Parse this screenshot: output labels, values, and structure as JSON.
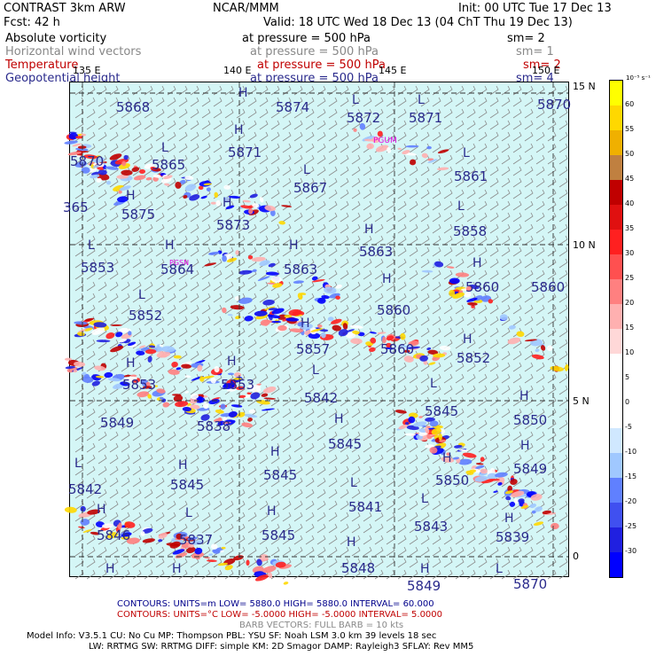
{
  "header": {
    "model": "CONTRAST  3km ARW",
    "org": "NCAR/MMM",
    "init": "Init: 00 UTC Tue 17 Dec 13",
    "fcst": "Fcst:    42 h",
    "valid": "Valid: 18 UTC Wed 18 Dec 13 (04 ChT Thu 19 Dec 13)"
  },
  "fields": [
    {
      "name": "Absolute vorticity",
      "pressure": "at pressure =  500 hPa",
      "sm": "sm= 2",
      "color": "#000000"
    },
    {
      "name": "Horizontal wind vectors",
      "pressure": "at pressure =  500 hPa",
      "sm": "sm= 1",
      "color": "#888888"
    },
    {
      "name": "Temperature",
      "pressure": "at pressure =  500 hPa",
      "sm": "sm= 2",
      "color": "#c00000"
    },
    {
      "name": "Geopotential height",
      "pressure": "at pressure =  500 hPa",
      "sm": "sm= 4",
      "color": "#2a2a8c"
    }
  ],
  "map": {
    "lat_labels": [
      "15 N",
      "10 N",
      "5 N",
      "0"
    ],
    "lon_labels": [
      "135 E",
      "140 E",
      "145 E",
      "150 E"
    ],
    "station": "PGUM",
    "station2": "PGSN",
    "height_labels": [
      {
        "t": "5868"
      },
      {
        "t": "H"
      },
      {
        "t": "5874"
      },
      {
        "t": "L"
      },
      {
        "t": "5872"
      },
      {
        "t": "L"
      },
      {
        "t": "5871"
      },
      {
        "t": "5870"
      },
      {
        "t": "5870"
      },
      {
        "t": "L"
      },
      {
        "t": "5865"
      },
      {
        "t": "H"
      },
      {
        "t": "5871"
      },
      {
        "t": "L"
      },
      {
        "t": "5867"
      },
      {
        "t": "L"
      },
      {
        "t": "5861"
      },
      {
        "t": "365"
      },
      {
        "t": "H"
      },
      {
        "t": "5875"
      },
      {
        "t": "H"
      },
      {
        "t": "5873"
      },
      {
        "t": "L"
      },
      {
        "t": "5858"
      },
      {
        "t": "H"
      },
      {
        "t": "5863"
      },
      {
        "t": "L"
      },
      {
        "t": "5853"
      },
      {
        "t": "H"
      },
      {
        "t": "5864"
      },
      {
        "t": "H"
      },
      {
        "t": "5863"
      },
      {
        "t": "H"
      },
      {
        "t": "5860"
      },
      {
        "t": "5860"
      },
      {
        "t": "L"
      },
      {
        "t": "5852"
      },
      {
        "t": "H"
      },
      {
        "t": "5860"
      },
      {
        "t": "H"
      },
      {
        "t": "5857"
      },
      {
        "t": "5860"
      },
      {
        "t": "H"
      },
      {
        "t": "5852"
      },
      {
        "t": "H"
      },
      {
        "t": "5853"
      },
      {
        "t": "H"
      },
      {
        "t": "5853"
      },
      {
        "t": "L"
      },
      {
        "t": "5842"
      },
      {
        "t": "L"
      },
      {
        "t": "5845"
      },
      {
        "t": "H"
      },
      {
        "t": "5850"
      },
      {
        "t": "5849"
      },
      {
        "t": "5838"
      },
      {
        "t": "H"
      },
      {
        "t": "5845"
      },
      {
        "t": "H"
      },
      {
        "t": "5849"
      },
      {
        "t": "H"
      },
      {
        "t": "5845"
      },
      {
        "t": "H"
      },
      {
        "t": "5845"
      },
      {
        "t": "L"
      },
      {
        "t": "5842"
      },
      {
        "t": "H"
      },
      {
        "t": "5850"
      },
      {
        "t": "L"
      },
      {
        "t": "5841"
      },
      {
        "t": "H"
      },
      {
        "t": "5846"
      },
      {
        "t": "L"
      },
      {
        "t": "5837"
      },
      {
        "t": "H"
      },
      {
        "t": "5845"
      },
      {
        "t": "L"
      },
      {
        "t": "5843"
      },
      {
        "t": "H"
      },
      {
        "t": "5839"
      },
      {
        "t": "H"
      },
      {
        "t": "5848"
      },
      {
        "t": "H"
      },
      {
        "t": "H"
      },
      {
        "t": "H"
      },
      {
        "t": "5849"
      },
      {
        "t": "L"
      },
      {
        "t": "5870"
      }
    ]
  },
  "colorbar": {
    "units": "10⁻⁵ s⁻¹",
    "ticks": [
      "60",
      "55",
      "50",
      "45",
      "40",
      "35",
      "30",
      "25",
      "20",
      "15",
      "10",
      "5",
      "0",
      "-5",
      "-10",
      "-15",
      "-20",
      "-25",
      "-30"
    ],
    "colors": [
      "#ffff00",
      "#ffd800",
      "#f0b000",
      "#c08040",
      "#c00000",
      "#e01010",
      "#ff2020",
      "#ff5050",
      "#ff8080",
      "#ffb0b0",
      "#ffd8d8",
      "#ffffff",
      "#ffffff",
      "#ffffff",
      "#d0e8ff",
      "#a0c8ff",
      "#6080ff",
      "#4050f0",
      "#2020e0",
      "#0000ff"
    ]
  },
  "footer": {
    "contours1": "CONTOURS:  UNITS=m   LOW=   5880.0        HIGH=   5880.0        INTERVAL=    60.000",
    "contours2": "CONTOURS:  UNITS=°C   LOW= -5.0000        HIGH= -5.0000        INTERVAL=    5.0000",
    "barb": "BARB VECTORS:  FULL BARB = 10 kts",
    "info1": "Model Info: V3.5.1     CU: No Cu      MP: Thompson      PBL: YSU        SF: Noah LSM      3.0 km   39 levels   18 sec",
    "info2": "LW: RRTMG    SW: RRTMG   DIFF: simple KM: 2D Smagor DAMP: Rayleigh3   SFLAY: Rev MM5",
    "c1color": "#00008b",
    "c2color": "#c00000"
  }
}
